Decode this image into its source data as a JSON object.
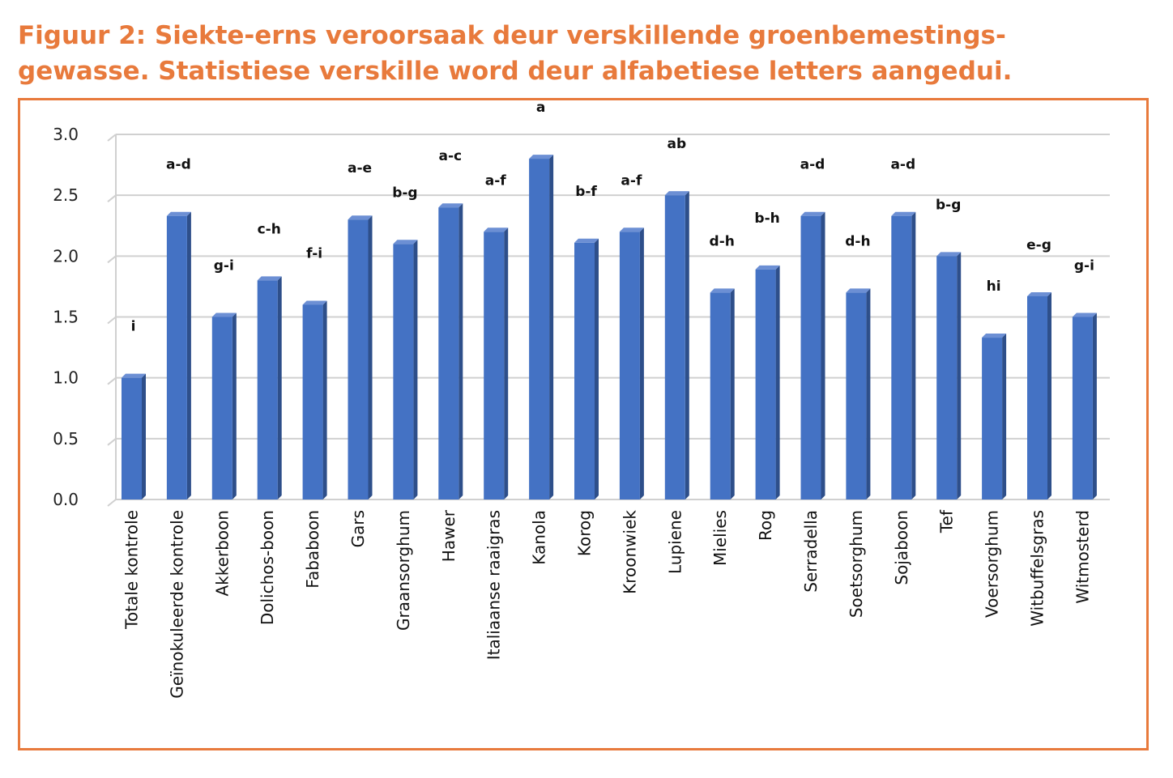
{
  "title_lines": [
    "Figuur 2: Siekte-erns veroorsaak deur verskillende groenbemestings-",
    "gewasse. Statistiese verskille word deur alfabetiese letters aangedui."
  ],
  "colors": {
    "title": "#e87a3c",
    "frame": "#e87a3c",
    "bar": "#4472c4",
    "bar_side": "#2e4f8a",
    "bar_top": "#6c8fd4",
    "grid": "#d0d0d0"
  },
  "chart_data": {
    "type": "bar",
    "title": "Figuur 2: Siekte-erns veroorsaak deur verskillende groenbemestings-gewasse. Statistiese verskille word deur alfabetiese letters aangedui.",
    "xlabel": "",
    "ylabel": "",
    "ylim": [
      0,
      3
    ],
    "yticks": [
      "0.0",
      "0.5",
      "1.0",
      "1.5",
      "2.0",
      "2.5",
      "3.0"
    ],
    "grid": true,
    "legend": "none",
    "categories": [
      "Totale kontrole",
      "Geïnokuleerde kontrole",
      "Akkerboon",
      "Dolichos-boon",
      "Fababoon",
      "Gars",
      "Graansorghum",
      "Hawer",
      "Italiaanse raaigras",
      "Kanola",
      "Korog",
      "Kroonwiek",
      "Lupiene",
      "Mielies",
      "Rog",
      "Serradella",
      "Soetsorghum",
      "Sojaboon",
      "Tef",
      "Voersorghum",
      "Witbuffelsgras",
      "Witmosterd"
    ],
    "values": [
      1.0,
      2.33,
      1.5,
      1.8,
      1.6,
      2.3,
      2.1,
      2.4,
      2.2,
      2.8,
      2.11,
      2.2,
      2.5,
      1.7,
      1.89,
      2.33,
      1.7,
      2.33,
      2.0,
      1.33,
      1.67,
      1.5
    ],
    "significance_labels": [
      "i",
      "a-d",
      "g-i",
      "c-h",
      "f-i",
      "a-e",
      "b-g",
      "a-c",
      "a-f",
      "a",
      "b-f",
      "a-f",
      "ab",
      "d-h",
      "b-h",
      "a-d",
      "d-h",
      "a-d",
      "b-g",
      "hi",
      "e-g",
      "g-i"
    ]
  }
}
